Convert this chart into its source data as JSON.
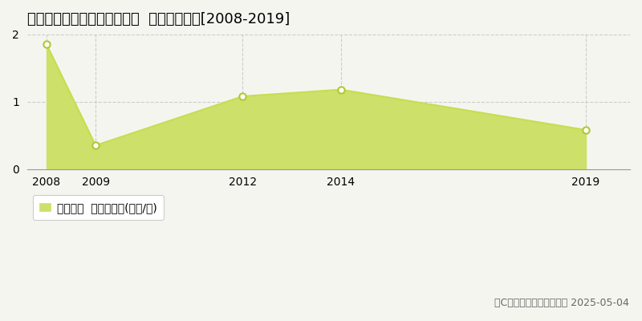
{
  "title": "白糠郡白糠町西庶路東二条南  土地価格推移[2008-2019]",
  "years": [
    2008,
    2009,
    2012,
    2014,
    2019
  ],
  "values": [
    1.85,
    0.35,
    1.08,
    1.18,
    0.58
  ],
  "line_color": "#c8dd50",
  "fill_color": "#cde06a",
  "fill_alpha": 1.0,
  "marker_color": "white",
  "marker_edgecolor": "#b0c830",
  "marker_size": 6,
  "ylim": [
    0,
    2.0
  ],
  "yticks": [
    0,
    1,
    2
  ],
  "xlim_min": 2007.6,
  "xlim_max": 2019.9,
  "xticks": [
    2008,
    2009,
    2012,
    2014,
    2019
  ],
  "grid_color": "#cccccc",
  "grid_style": "--",
  "bg_color": "#f5f5f0",
  "legend_label": "土地価格  平均坪単価(万円/坪)",
  "copyright_text": "（C）土地価格ドットコム 2025-05-04",
  "title_fontsize": 13,
  "axis_fontsize": 10,
  "legend_fontsize": 10,
  "copyright_fontsize": 9
}
